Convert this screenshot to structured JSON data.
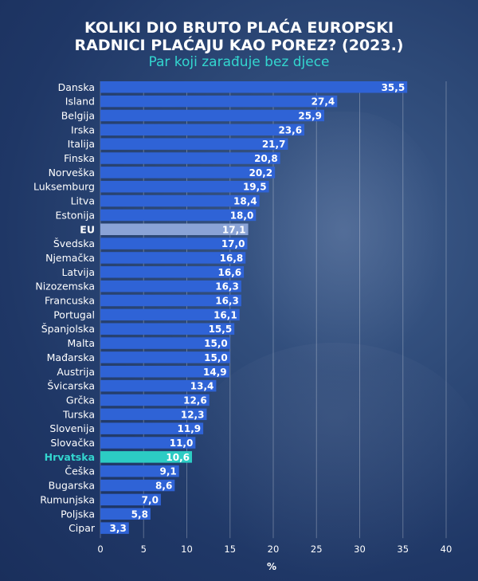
{
  "title_line1": "KOLIKI DIO BRUTO PLAĆA EUROPSKI",
  "title_line2": "RADNICI PLAĆAJU KAO POREZ? (2023.)",
  "subtitle": "Par koji zarađuje bez djece",
  "colors": {
    "bar": "#2f63d6",
    "eu_bar": "#8aa3d6",
    "highlight_bar": "#2cccc4",
    "highlight_label": "#33d6cf",
    "text": "#ffffff"
  },
  "chart_data": {
    "type": "bar",
    "orientation": "horizontal",
    "title": "KOLIKI DIO BRUTO PLAĆA EUROPSKI RADNICI PLAĆAJU KAO POREZ? (2023.)",
    "subtitle": "Par koji zarađuje bez djece",
    "xlabel": "%",
    "ylabel": "",
    "xlim": [
      0,
      40
    ],
    "xticks": [
      0,
      5,
      10,
      15,
      20,
      25,
      30,
      35,
      40
    ],
    "grid": true,
    "categories": [
      "Danska",
      "Island",
      "Belgija",
      "Irska",
      "Italija",
      "Finska",
      "Norveška",
      "Luksemburg",
      "Litva",
      "Estonija",
      "EU",
      "Švedska",
      "Njemačka",
      "Latvija",
      "Nizozemska",
      "Francuska",
      "Portugal",
      "Španjolska",
      "Malta",
      "Mađarska",
      "Austrija",
      "Švicarska",
      "Grčka",
      "Turska",
      "Slovenija",
      "Slovačka",
      "Hrvatska",
      "Češka",
      "Bugarska",
      "Rumunjska",
      "Poljska",
      "Cipar"
    ],
    "values": [
      35.5,
      27.4,
      25.9,
      23.6,
      21.7,
      20.8,
      20.2,
      19.5,
      18.4,
      18.0,
      17.1,
      17.0,
      16.8,
      16.6,
      16.3,
      16.3,
      16.1,
      15.5,
      15.0,
      15.0,
      14.9,
      13.4,
      12.6,
      12.3,
      11.9,
      11.0,
      10.6,
      9.1,
      8.6,
      7.0,
      5.8,
      3.3
    ],
    "value_labels": [
      "35,5",
      "27,4",
      "25,9",
      "23,6",
      "21,7",
      "20,8",
      "20,2",
      "19,5",
      "18,4",
      "18,0",
      "17,1",
      "17,0",
      "16,8",
      "16,6",
      "16,3",
      "16,3",
      "16,1",
      "15,5",
      "15,0",
      "15,0",
      "14,9",
      "13,4",
      "12,6",
      "12,3",
      "11,9",
      "11,0",
      "10,6",
      "9,1",
      "8,6",
      "7,0",
      "5,8",
      "3,3"
    ],
    "tick_labels": [
      "0",
      "5",
      "10",
      "15",
      "20",
      "25",
      "30",
      "35",
      "40"
    ],
    "bold_categories": [
      "EU",
      "Hrvatska"
    ],
    "highlight_category": "Hrvatska",
    "average_category": "EU"
  }
}
